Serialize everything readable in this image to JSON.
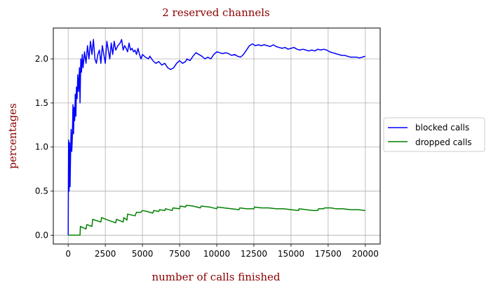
{
  "chart_data": {
    "type": "line",
    "title": "2 reserved channels",
    "xlabel": "number of calls finished",
    "ylabel": "percentages",
    "xlim": [
      -1000,
      21000
    ],
    "ylim": [
      -0.1,
      2.35
    ],
    "x_ticks": [
      0,
      2500,
      5000,
      7500,
      10000,
      12500,
      15000,
      17500,
      20000
    ],
    "y_ticks": [
      0.0,
      0.5,
      1.0,
      1.5,
      2.0
    ],
    "y_tick_labels": [
      "0.0",
      "0.5",
      "1.0",
      "1.5",
      "2.0"
    ],
    "grid": true,
    "legend_position": "center-right-outside",
    "series": [
      {
        "name": "blocked calls",
        "color": "#0000ff",
        "points": [
          [
            0,
            0.0
          ],
          [
            30,
            1.08
          ],
          [
            60,
            0.5
          ],
          [
            90,
            1.05
          ],
          [
            130,
            0.55
          ],
          [
            170,
            1.0
          ],
          [
            200,
            1.2
          ],
          [
            240,
            0.95
          ],
          [
            280,
            1.1
          ],
          [
            320,
            1.48
          ],
          [
            360,
            1.15
          ],
          [
            400,
            1.45
          ],
          [
            440,
            1.3
          ],
          [
            480,
            1.6
          ],
          [
            520,
            1.35
          ],
          [
            560,
            1.68
          ],
          [
            600,
            1.55
          ],
          [
            650,
            1.82
          ],
          [
            700,
            1.63
          ],
          [
            760,
            1.9
          ],
          [
            800,
            1.5
          ],
          [
            850,
            2.0
          ],
          [
            900,
            1.85
          ],
          [
            950,
            2.05
          ],
          [
            1000,
            1.9
          ],
          [
            1100,
            2.08
          ],
          [
            1200,
            1.95
          ],
          [
            1300,
            2.15
          ],
          [
            1400,
            2.0
          ],
          [
            1500,
            2.2
          ],
          [
            1600,
            2.05
          ],
          [
            1700,
            2.22
          ],
          [
            1800,
            2.0
          ],
          [
            1900,
            1.95
          ],
          [
            2000,
            2.05
          ],
          [
            2100,
            2.1
          ],
          [
            2200,
            1.95
          ],
          [
            2300,
            2.15
          ],
          [
            2400,
            2.05
          ],
          [
            2500,
            1.95
          ],
          [
            2600,
            2.2
          ],
          [
            2700,
            2.1
          ],
          [
            2800,
            2.0
          ],
          [
            2900,
            2.18
          ],
          [
            3000,
            2.05
          ],
          [
            3100,
            2.2
          ],
          [
            3200,
            2.1
          ],
          [
            3350,
            2.15
          ],
          [
            3500,
            2.18
          ],
          [
            3600,
            2.22
          ],
          [
            3700,
            2.1
          ],
          [
            3800,
            2.15
          ],
          [
            3900,
            2.12
          ],
          [
            4000,
            2.08
          ],
          [
            4100,
            2.18
          ],
          [
            4200,
            2.1
          ],
          [
            4300,
            2.12
          ],
          [
            4400,
            2.08
          ],
          [
            4500,
            2.1
          ],
          [
            4600,
            2.05
          ],
          [
            4700,
            2.12
          ],
          [
            4800,
            2.05
          ],
          [
            4900,
            2.0
          ],
          [
            5000,
            2.05
          ],
          [
            5200,
            2.02
          ],
          [
            5400,
            2.0
          ],
          [
            5500,
            2.03
          ],
          [
            5700,
            1.98
          ],
          [
            5900,
            1.95
          ],
          [
            6100,
            1.97
          ],
          [
            6300,
            1.93
          ],
          [
            6500,
            1.95
          ],
          [
            6700,
            1.9
          ],
          [
            6900,
            1.88
          ],
          [
            7100,
            1.9
          ],
          [
            7300,
            1.95
          ],
          [
            7500,
            1.98
          ],
          [
            7700,
            1.95
          ],
          [
            7900,
            1.97
          ],
          [
            8000,
            2.0
          ],
          [
            8200,
            1.98
          ],
          [
            8400,
            2.03
          ],
          [
            8600,
            2.07
          ],
          [
            8800,
            2.05
          ],
          [
            9000,
            2.03
          ],
          [
            9200,
            2.0
          ],
          [
            9400,
            2.02
          ],
          [
            9600,
            2.0
          ],
          [
            9800,
            2.05
          ],
          [
            10000,
            2.08
          ],
          [
            10200,
            2.07
          ],
          [
            10400,
            2.06
          ],
          [
            10600,
            2.07
          ],
          [
            10800,
            2.06
          ],
          [
            11000,
            2.04
          ],
          [
            11200,
            2.05
          ],
          [
            11400,
            2.03
          ],
          [
            11600,
            2.02
          ],
          [
            11800,
            2.05
          ],
          [
            12000,
            2.1
          ],
          [
            12200,
            2.15
          ],
          [
            12400,
            2.17
          ],
          [
            12600,
            2.15
          ],
          [
            12800,
            2.16
          ],
          [
            13000,
            2.15
          ],
          [
            13200,
            2.16
          ],
          [
            13400,
            2.15
          ],
          [
            13600,
            2.14
          ],
          [
            13800,
            2.16
          ],
          [
            14000,
            2.14
          ],
          [
            14200,
            2.13
          ],
          [
            14400,
            2.12
          ],
          [
            14600,
            2.13
          ],
          [
            14800,
            2.11
          ],
          [
            15000,
            2.12
          ],
          [
            15200,
            2.13
          ],
          [
            15400,
            2.11
          ],
          [
            15600,
            2.1
          ],
          [
            15800,
            2.11
          ],
          [
            16000,
            2.1
          ],
          [
            16200,
            2.09
          ],
          [
            16400,
            2.1
          ],
          [
            16600,
            2.09
          ],
          [
            16800,
            2.11
          ],
          [
            17000,
            2.1
          ],
          [
            17200,
            2.11
          ],
          [
            17400,
            2.1
          ],
          [
            17600,
            2.08
          ],
          [
            17800,
            2.07
          ],
          [
            18000,
            2.06
          ],
          [
            18200,
            2.05
          ],
          [
            18400,
            2.04
          ],
          [
            18600,
            2.04
          ],
          [
            18800,
            2.03
          ],
          [
            19000,
            2.02
          ],
          [
            19200,
            2.02
          ],
          [
            19400,
            2.02
          ],
          [
            19600,
            2.01
          ],
          [
            19800,
            2.02
          ],
          [
            20000,
            2.03
          ]
        ]
      },
      {
        "name": "dropped calls",
        "color": "#008000",
        "points": [
          [
            0,
            0.0
          ],
          [
            800,
            0.0
          ],
          [
            820,
            0.1
          ],
          [
            1200,
            0.07
          ],
          [
            1250,
            0.12
          ],
          [
            1600,
            0.1
          ],
          [
            1650,
            0.18
          ],
          [
            2200,
            0.15
          ],
          [
            2250,
            0.2
          ],
          [
            2700,
            0.17
          ],
          [
            3200,
            0.14
          ],
          [
            3250,
            0.18
          ],
          [
            3700,
            0.15
          ],
          [
            3750,
            0.2
          ],
          [
            3900,
            0.18
          ],
          [
            3950,
            0.17
          ],
          [
            4000,
            0.24
          ],
          [
            4500,
            0.22
          ],
          [
            4600,
            0.26
          ],
          [
            4900,
            0.26
          ],
          [
            5000,
            0.28
          ],
          [
            5300,
            0.27
          ],
          [
            5700,
            0.25
          ],
          [
            5750,
            0.28
          ],
          [
            6100,
            0.27
          ],
          [
            6150,
            0.29
          ],
          [
            6500,
            0.28
          ],
          [
            6550,
            0.3
          ],
          [
            7000,
            0.28
          ],
          [
            7050,
            0.31
          ],
          [
            7500,
            0.3
          ],
          [
            7550,
            0.33
          ],
          [
            7900,
            0.32
          ],
          [
            7950,
            0.34
          ],
          [
            8400,
            0.33
          ],
          [
            8900,
            0.31
          ],
          [
            8950,
            0.33
          ],
          [
            9500,
            0.32
          ],
          [
            10000,
            0.3
          ],
          [
            10050,
            0.32
          ],
          [
            10500,
            0.31
          ],
          [
            11000,
            0.3
          ],
          [
            11500,
            0.29
          ],
          [
            11550,
            0.31
          ],
          [
            12000,
            0.3
          ],
          [
            12500,
            0.3
          ],
          [
            12550,
            0.32
          ],
          [
            13000,
            0.31
          ],
          [
            13500,
            0.31
          ],
          [
            14000,
            0.3
          ],
          [
            14500,
            0.3
          ],
          [
            15000,
            0.29
          ],
          [
            15500,
            0.28
          ],
          [
            15550,
            0.3
          ],
          [
            16000,
            0.29
          ],
          [
            16500,
            0.28
          ],
          [
            16800,
            0.28
          ],
          [
            16850,
            0.3
          ],
          [
            17200,
            0.3
          ],
          [
            17250,
            0.31
          ],
          [
            17700,
            0.31
          ],
          [
            18000,
            0.3
          ],
          [
            18500,
            0.3
          ],
          [
            19000,
            0.29
          ],
          [
            19500,
            0.29
          ],
          [
            20000,
            0.28
          ]
        ]
      }
    ]
  }
}
